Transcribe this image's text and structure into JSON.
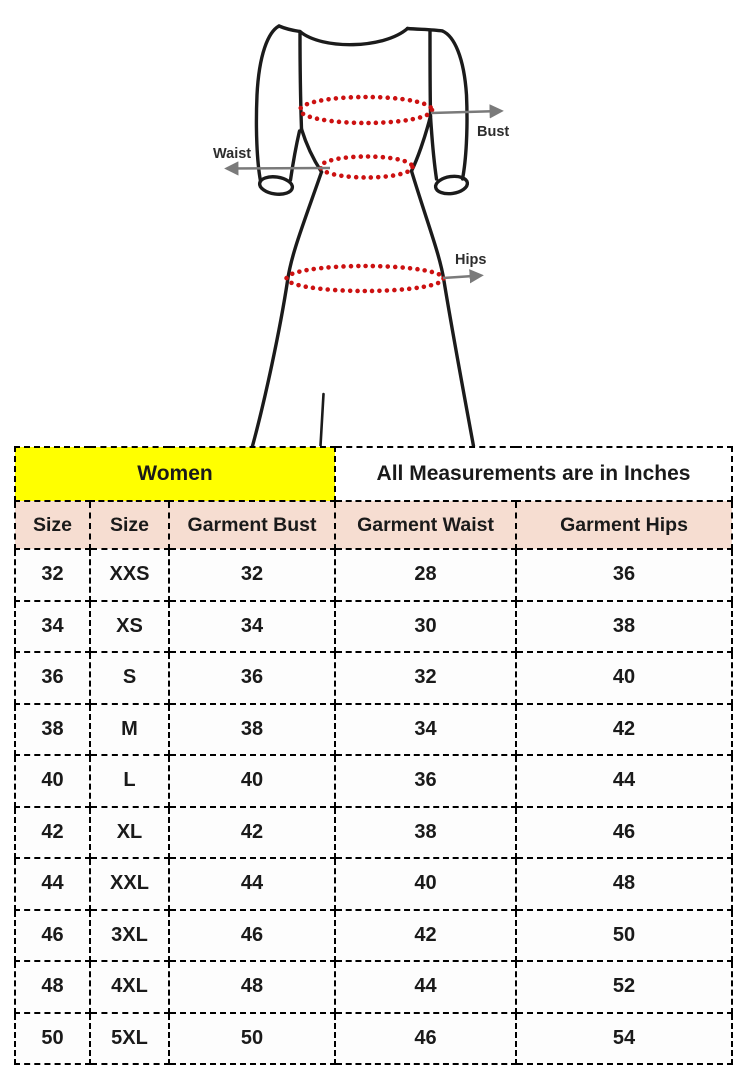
{
  "diagram": {
    "bust_label": "Bust",
    "waist_label": "Waist",
    "hips_label": "Hips",
    "colors": {
      "outline": "#1b1b1b",
      "measure_dots": "#cc1111",
      "arrow": "#7a7a7a",
      "label_text": "#2d2d2d"
    }
  },
  "table": {
    "group_headers": [
      {
        "label": "Women",
        "colspan": 3,
        "bg": "#ffff00"
      },
      {
        "label": "All Measurements are in Inches",
        "colspan": 2,
        "bg": "#ffffff"
      }
    ],
    "columns": [
      "Size",
      "Size",
      "Garment Bust",
      "Garment Waist",
      "Garment Hips"
    ],
    "header_bg": "#f6ddd1",
    "rows": [
      [
        "32",
        "XXS",
        "32",
        "28",
        "36"
      ],
      [
        "34",
        "XS",
        "34",
        "30",
        "38"
      ],
      [
        "36",
        "S",
        "36",
        "32",
        "40"
      ],
      [
        "38",
        "M",
        "38",
        "34",
        "42"
      ],
      [
        "40",
        "L",
        "40",
        "36",
        "44"
      ],
      [
        "42",
        "XL",
        "42",
        "38",
        "46"
      ],
      [
        "44",
        "XXL",
        "44",
        "40",
        "48"
      ],
      [
        "46",
        "3XL",
        "46",
        "42",
        "50"
      ],
      [
        "48",
        "4XL",
        "48",
        "44",
        "52"
      ],
      [
        "50",
        "5XL",
        "50",
        "46",
        "54"
      ]
    ]
  }
}
